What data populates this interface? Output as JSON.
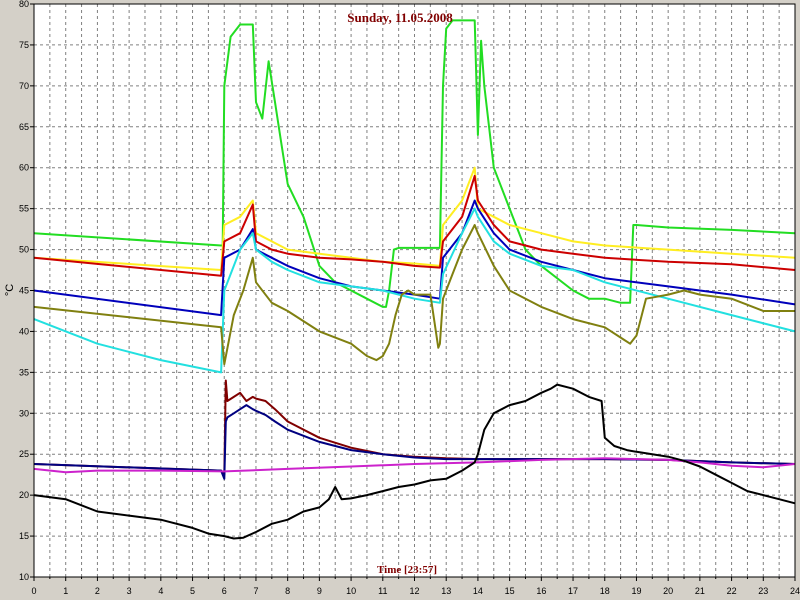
{
  "chart_data": {
    "type": "line",
    "title": "Sunday, 11.05.2008",
    "xlabel": "Time [23:57]",
    "ylabel": "°C",
    "xlim": [
      0,
      24
    ],
    "ylim": [
      10,
      80
    ],
    "x_ticks": [
      "0",
      "1",
      "2",
      "3",
      "4",
      "5",
      "6",
      "7",
      "8",
      "9",
      "10",
      "11",
      "12",
      "13",
      "14",
      "15",
      "16",
      "17",
      "18",
      "19",
      "20",
      "21",
      "22",
      "23",
      "24"
    ],
    "y_ticks": [
      "10",
      "15",
      "20",
      "25",
      "30",
      "35",
      "40",
      "45",
      "50",
      "55",
      "60",
      "65",
      "70",
      "75",
      "80"
    ],
    "grid": true,
    "grid_minor_x": 0.5,
    "colors": {
      "plot_bg": "#ffffff",
      "frame_bg": "#d4d0c8",
      "grid": "#808080"
    },
    "series": [
      {
        "color": "#22dd22",
        "x": [
          0,
          5.9,
          5.95,
          6.0,
          6.2,
          6.5,
          6.9,
          7.0,
          7.2,
          7.4,
          7.6,
          7.8,
          8.0,
          8.5,
          9.0,
          9.5,
          10.0,
          10.5,
          11.0,
          11.1,
          11.2,
          11.35,
          11.5,
          12.8,
          12.9,
          13.0,
          13.2,
          13.5,
          13.9,
          14.0,
          14.1,
          14.2,
          14.5,
          15.0,
          15.5,
          16.0,
          17.0,
          17.5,
          18.0,
          18.5,
          18.8,
          18.9,
          19.0,
          20,
          22,
          24
        ],
        "values": [
          52,
          50.5,
          50.5,
          70,
          76,
          77.5,
          77.5,
          68,
          66,
          73,
          68,
          63,
          58,
          54,
          48,
          46,
          45,
          44,
          43,
          43,
          45,
          50,
          50.2,
          50.2,
          70,
          77,
          78,
          78,
          78,
          64,
          75.5,
          70,
          60,
          55,
          50,
          48,
          45,
          44,
          44,
          43.5,
          43.5,
          53,
          53,
          52.7,
          52.4,
          52
        ]
      },
      {
        "color": "#ffee22",
        "x": [
          0,
          5.9,
          6.0,
          6.5,
          6.9,
          7.0,
          7.5,
          8,
          9,
          10,
          11,
          12,
          12.8,
          12.9,
          13.5,
          13.9,
          14.0,
          14.5,
          15,
          16,
          17,
          18,
          20,
          22,
          24
        ],
        "values": [
          49,
          47.5,
          53,
          54,
          56,
          52,
          51,
          50,
          49.5,
          49,
          48.5,
          48.3,
          48,
          53,
          56,
          60,
          55,
          54,
          53,
          52,
          51,
          50.5,
          50,
          49.5,
          49
        ]
      },
      {
        "color": "#cc0000",
        "x": [
          0,
          5.9,
          6.0,
          6.5,
          6.9,
          7.0,
          7.5,
          8,
          9,
          10,
          11,
          12,
          12.8,
          12.9,
          13.5,
          13.9,
          14.0,
          14.5,
          15,
          16,
          17,
          18,
          20,
          22,
          24
        ],
        "values": [
          49,
          46.8,
          51,
          52,
          55.5,
          51,
          50,
          49.5,
          49,
          48.8,
          48.5,
          48,
          47.8,
          51,
          54,
          59,
          56,
          53,
          51,
          50,
          49.5,
          49,
          48.5,
          48.2,
          47.5
        ]
      },
      {
        "color": "#0000bb",
        "x": [
          0,
          5.9,
          6.0,
          6.5,
          6.9,
          7.0,
          7.5,
          8,
          9,
          10,
          11,
          12,
          12.8,
          12.9,
          13.5,
          13.9,
          14.0,
          14.5,
          15,
          16,
          17,
          18,
          20,
          22,
          24
        ],
        "values": [
          45,
          42,
          49,
          50,
          52.5,
          50,
          49,
          48,
          46.5,
          45.5,
          45,
          44.5,
          44,
          49,
          52,
          56,
          55,
          52,
          50,
          48.5,
          47.5,
          46.5,
          45.5,
          44.5,
          43.3
        ]
      },
      {
        "color": "#22e0e0",
        "x": [
          0,
          2,
          4,
          5.9,
          6.0,
          6.5,
          6.9,
          7.0,
          7.5,
          8,
          9,
          10,
          11,
          12,
          12.8,
          12.9,
          13.5,
          13.9,
          14.0,
          14.5,
          15,
          16,
          17,
          18,
          20,
          22,
          24
        ],
        "values": [
          41.5,
          38.5,
          36.5,
          35,
          45,
          50,
          52,
          50,
          48.5,
          47.5,
          46,
          45.5,
          45,
          44,
          43.5,
          47,
          52,
          55,
          54,
          51,
          49.5,
          48,
          47.5,
          46,
          44,
          42,
          40
        ]
      },
      {
        "color": "#808010",
        "x": [
          0,
          5.9,
          6.0,
          6.3,
          6.6,
          6.9,
          7.0,
          7.5,
          8,
          9,
          10,
          10.5,
          10.8,
          11.0,
          11.2,
          11.4,
          11.6,
          11.8,
          12,
          12.5,
          12.75,
          12.8,
          12.9,
          13.2,
          13.5,
          13.9,
          14.0,
          14.5,
          15,
          16,
          17,
          18,
          18.6,
          18.8,
          19.0,
          19.3,
          20,
          20.5,
          21,
          22,
          23,
          24
        ],
        "values": [
          43,
          40.5,
          36,
          42,
          45,
          49,
          46,
          43.5,
          42.5,
          40,
          38.5,
          37,
          36.5,
          37,
          38.5,
          42,
          44.5,
          45,
          44.5,
          44.5,
          38,
          38.5,
          44,
          47,
          50,
          53,
          52,
          48,
          45,
          43,
          41.5,
          40.5,
          39,
          38.5,
          39.5,
          44,
          44.5,
          45,
          44.5,
          44,
          42.5,
          42.5
        ]
      },
      {
        "color": "#800000",
        "x": [
          0,
          5.9,
          6.0,
          6.05,
          6.1,
          6.3,
          6.5,
          6.7,
          6.9,
          7.0,
          7.3,
          7.6,
          8,
          9,
          10,
          11,
          12,
          13,
          14,
          16,
          18,
          20,
          22,
          24
        ],
        "values": [
          23.8,
          23,
          22.5,
          34,
          31.5,
          32,
          32.5,
          31.5,
          32,
          31.8,
          31.5,
          30.5,
          29,
          27,
          25.8,
          25,
          24.7,
          24.5,
          24.4,
          24.4,
          24.4,
          24.3,
          24,
          23.8
        ]
      },
      {
        "color": "#000080",
        "x": [
          0,
          5.9,
          6.0,
          6.05,
          6.1,
          6.3,
          6.5,
          6.7,
          6.9,
          7.0,
          7.3,
          7.6,
          8,
          9,
          10,
          11,
          12,
          13,
          14,
          16,
          18,
          20,
          22,
          24
        ],
        "values": [
          23.8,
          23,
          22,
          29,
          29.5,
          30,
          30.5,
          31,
          30.5,
          30.3,
          29.8,
          29,
          28,
          26.5,
          25.5,
          25,
          24.6,
          24.4,
          24.4,
          24.4,
          24.4,
          24.3,
          24,
          23.8
        ]
      },
      {
        "color": "#cc22cc",
        "x": [
          0,
          1,
          2,
          4,
          6,
          8,
          10,
          12,
          14,
          16,
          18,
          20,
          21,
          22,
          23,
          24
        ],
        "values": [
          23.2,
          22.8,
          23,
          23,
          22.9,
          23.2,
          23.5,
          23.8,
          24,
          24.3,
          24.5,
          24.3,
          24,
          23.6,
          23.4,
          23.8
        ]
      },
      {
        "color": "#000000",
        "x": [
          0,
          1,
          2,
          3,
          4,
          5,
          5.5,
          6,
          6.3,
          6.6,
          7,
          7.5,
          8,
          8.5,
          9,
          9.3,
          9.5,
          9.7,
          10,
          10.5,
          11,
          11.5,
          12,
          12.5,
          13,
          13.5,
          13.9,
          14.0,
          14.2,
          14.5,
          15,
          15.5,
          16,
          16.3,
          16.5,
          17,
          17.5,
          17.9,
          18.0,
          18.3,
          18.7,
          19,
          19.5,
          20,
          20.5,
          21,
          21.5,
          22,
          22.5,
          23,
          23.5,
          24
        ],
        "values": [
          20,
          19.5,
          18,
          17.5,
          17,
          16,
          15.3,
          15,
          14.7,
          14.8,
          15.5,
          16.5,
          17,
          18,
          18.5,
          19.5,
          21,
          19.5,
          19.6,
          20,
          20.5,
          21,
          21.3,
          21.8,
          22,
          23,
          24,
          25,
          28,
          30,
          31,
          31.5,
          32.5,
          33,
          33.5,
          33,
          32,
          31.5,
          27,
          26,
          25.5,
          25.3,
          25,
          24.7,
          24.2,
          23.5,
          22.5,
          21.5,
          20.5,
          20,
          19.5,
          19
        ]
      }
    ]
  }
}
